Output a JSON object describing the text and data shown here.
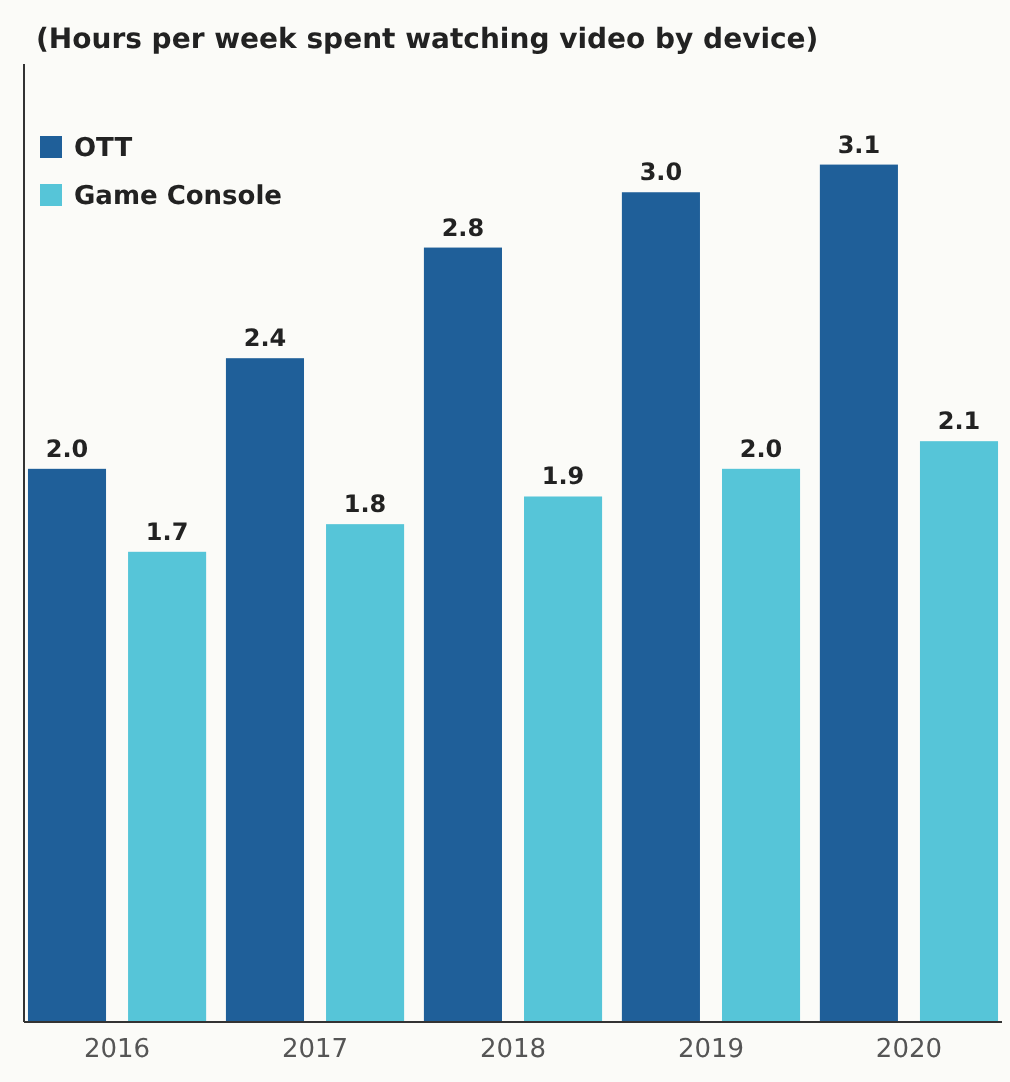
{
  "chart_data": {
    "type": "bar",
    "title": "(Hours per week spent watching video by device)",
    "categories": [
      "2016",
      "2017",
      "2018",
      "2019",
      "2020"
    ],
    "series": [
      {
        "name": "OTT",
        "color": "#1f5f99",
        "values": [
          2.0,
          2.4,
          2.8,
          3.0,
          3.1
        ],
        "value_labels": [
          "2.0",
          "2.4",
          "2.8",
          "3.0",
          "3.1"
        ]
      },
      {
        "name": "Game Console",
        "color": "#56c5d8",
        "values": [
          1.7,
          1.8,
          1.9,
          2.0,
          2.1
        ],
        "value_labels": [
          "1.7",
          "1.8",
          "1.9",
          "2.0",
          "2.1"
        ]
      }
    ],
    "legend": "top left"
  }
}
